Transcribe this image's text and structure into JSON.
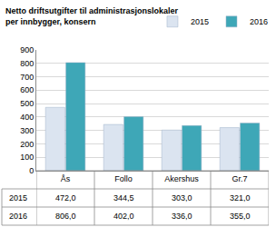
{
  "chart_data": {
    "type": "bar",
    "title": "Netto driftsutgifter til administrasjonslokaler\nper innbygger, konsern",
    "categories": [
      "Ås",
      "Follo",
      "Akershus",
      "Gr.7"
    ],
    "series": [
      {
        "name": "2015",
        "color": "#dbe4f0",
        "values": [
          472.0,
          344.5,
          303.0,
          321.0
        ],
        "value_labels": [
          "472,0",
          "344,5",
          "303,0",
          "321,0"
        ]
      },
      {
        "name": "2016",
        "color": "#3ea7b7",
        "values": [
          806.0,
          402.0,
          336.0,
          355.0
        ],
        "value_labels": [
          "806,0",
          "402,0",
          "336,0",
          "355,0"
        ]
      }
    ],
    "ylim": [
      0,
      900
    ],
    "yticks": [
      0,
      100,
      200,
      300,
      400,
      500,
      600,
      700,
      800,
      900
    ],
    "grid": true,
    "legend": "top right"
  }
}
